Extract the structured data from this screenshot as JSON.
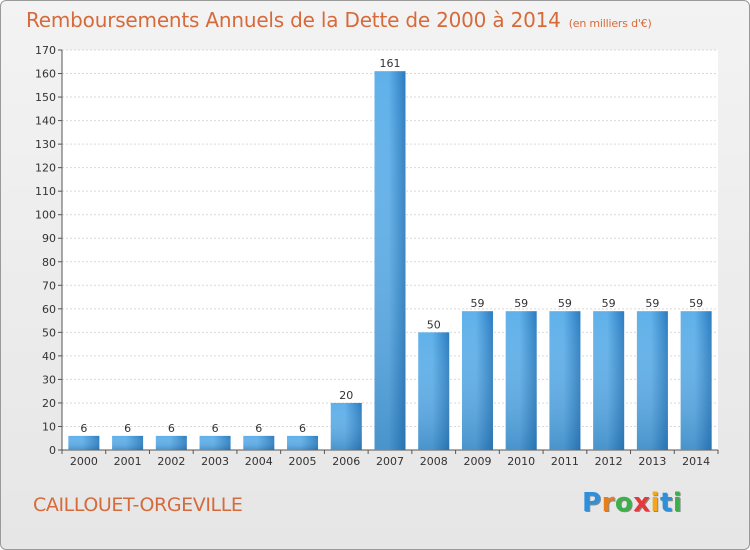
{
  "title": "Remboursements Annuels de la Dette de 2000 à 2014",
  "unit_label": "(en milliers d'€)",
  "town": "CAILLOUET-ORGEVILLE",
  "logo": {
    "letters": [
      "P",
      "r",
      "o",
      "x",
      "i",
      "t",
      "i"
    ],
    "colors": [
      "#2f8fd8",
      "#e87d1e",
      "#3bb04a",
      "#e23a3a",
      "#f2a81a",
      "#2f8fd8",
      "#3bb04a"
    ]
  },
  "colors": {
    "title": "#d66a3a",
    "bar_light": "#5fb0ea",
    "bar_dark": "#2a7cc0",
    "grid": "#d9d9d9",
    "axis": "#555555"
  },
  "chart_data": {
    "type": "bar",
    "title": "Remboursements Annuels de la Dette de 2000 à 2014",
    "categories": [
      "2000",
      "2001",
      "2002",
      "2003",
      "2004",
      "2005",
      "2006",
      "2007",
      "2008",
      "2009",
      "2010",
      "2011",
      "2012",
      "2013",
      "2014"
    ],
    "values": [
      6,
      6,
      6,
      6,
      6,
      6,
      20,
      161,
      50,
      59,
      59,
      59,
      59,
      59,
      59
    ],
    "ylim": [
      0,
      170
    ],
    "yticks": [
      0,
      10,
      20,
      30,
      40,
      50,
      60,
      70,
      80,
      90,
      100,
      110,
      120,
      130,
      140,
      150,
      160,
      170
    ],
    "grid": true,
    "legend": "none",
    "data_labels": true
  }
}
